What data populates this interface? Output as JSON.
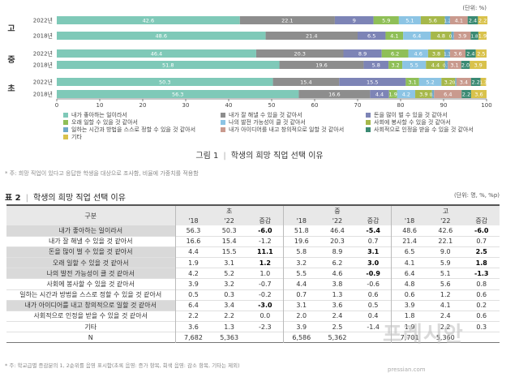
{
  "chart_data": {
    "type": "bar",
    "orientation": "horizontal",
    "stacked": true,
    "unit_label": "(단위: %)",
    "xlim": [
      0,
      100
    ],
    "xticks": [
      "0",
      "10",
      "20",
      "30",
      "40",
      "50",
      "60",
      "70",
      "80",
      "90",
      "100"
    ],
    "groups": [
      "고",
      "중",
      "초"
    ],
    "bars": [
      {
        "group": "고",
        "year": "2022년",
        "values": [
          42.6,
          22.1,
          9.0,
          5.9,
          5.1,
          5.6,
          1.2,
          4.1,
          2.4,
          2.2
        ]
      },
      {
        "group": "고",
        "year": "2018년",
        "values": [
          48.6,
          21.4,
          6.5,
          4.1,
          6.4,
          4.8,
          0.6,
          3.9,
          1.8,
          1.9
        ]
      },
      {
        "group": "중",
        "year": "2022년",
        "values": [
          46.4,
          20.3,
          8.9,
          6.2,
          4.6,
          3.8,
          1.3,
          3.6,
          2.4,
          2.5
        ]
      },
      {
        "group": "중",
        "year": "2018년",
        "values": [
          51.8,
          19.6,
          5.8,
          3.2,
          5.5,
          4.4,
          0.7,
          3.1,
          2.0,
          3.9
        ]
      },
      {
        "group": "초",
        "year": "2022년",
        "values": [
          50.3,
          15.4,
          15.5,
          3.1,
          5.2,
          3.2,
          0.3,
          3.4,
          2.2,
          1.3
        ]
      },
      {
        "group": "초",
        "year": "2018년",
        "values": [
          56.3,
          16.6,
          4.4,
          1.9,
          4.2,
          3.9,
          0.5,
          6.4,
          2.2,
          3.6
        ]
      }
    ],
    "segment_labels": [
      [
        "42.6",
        "22.1",
        "9",
        "5.9",
        "5.1",
        "5.6",
        "1.2",
        "4.1",
        "2.4",
        "2.2"
      ],
      [
        "48.6",
        "21.4",
        "6.5",
        "4.1",
        "6.4",
        "4.8",
        "0.6",
        "3.9",
        "1.8",
        "1.9"
      ],
      [
        "46.4",
        "20.3",
        "8.9",
        "6.2",
        "4.6",
        "3.8",
        "1.3",
        "3.6",
        "2.4",
        "2.5"
      ],
      [
        "51.8",
        "19.6",
        "5.8",
        "3.2",
        "5.5",
        "4.4",
        "0.7",
        "3.1",
        "2.0",
        "3.9"
      ],
      [
        "50.3",
        "15.4",
        "15.5",
        "3.1",
        "5.2",
        "3.2",
        "0.3",
        "3.4",
        "2.2",
        "1.3"
      ],
      [
        "56.3",
        "16.6",
        "4.4",
        "1.9",
        "4.2",
        "3.9",
        "0.5",
        "6.4",
        "2.2",
        "3.6"
      ]
    ],
    "series": [
      {
        "name": "내가 좋아하는 일이라서",
        "color": "#7fc9b8"
      },
      {
        "name": "내가 잘 해낼 수 있을 것 같아서",
        "color": "#8d8d8d"
      },
      {
        "name": "돈을 많이 벌 수 있을 것 같아서",
        "color": "#7d84b6"
      },
      {
        "name": "오래 일할 수 있을 것 같아서",
        "color": "#8fbf57"
      },
      {
        "name": "나의 발전 가능성이 클 것 같아서",
        "color": "#8cc4e4"
      },
      {
        "name": "사회에 봉사할 수 있을 것 같아서",
        "color": "#a6b84a"
      },
      {
        "name": "일하는 시간과 방법을 스스로 정할 수 있을 것 같아서",
        "color": "#6fa9c8"
      },
      {
        "name": "내가 아이디어를 내고 창의적으로 일할 것 같아서",
        "color": "#c99a8e"
      },
      {
        "name": "사회적으로 인정을 받을 수 있을 것 같아서",
        "color": "#3b8a73"
      },
      {
        "name": "기타",
        "color": "#d9c24c"
      }
    ]
  },
  "figure": {
    "num": "그림 1",
    "title": "학생의 희망 직업 선택 이유"
  },
  "note": "* 주: 희망 직업이 있다고 응답한 학생을 대상으로 조사함, 비율에 가중치를 적용함",
  "table": {
    "num": "표 2",
    "title": "학생의 희망 직업 선택 이유",
    "unit": "(단위: 명, %, %p)",
    "corner": "구분",
    "levels": [
      "초",
      "중",
      "고"
    ],
    "subheaders": [
      "'18",
      "'22",
      "증감",
      "'18",
      "'22",
      "증감",
      "'18",
      "'22",
      "증감"
    ],
    "rows": [
      {
        "label": "내가 좋아하는 일이라서",
        "hl": true,
        "cells": [
          "56.3",
          "50.3",
          "-6.0",
          "51.8",
          "46.4",
          "-5.4",
          "48.6",
          "42.6",
          "-6.0"
        ],
        "bold": [
          2,
          5,
          8
        ]
      },
      {
        "label": "내가 잘 해낼 수 있을 것 같아서",
        "hl": false,
        "cells": [
          "16.6",
          "15.4",
          "-1.2",
          "19.6",
          "20.3",
          "0.7",
          "21.4",
          "22.1",
          "0.7"
        ],
        "bold": []
      },
      {
        "label": "돈을 많이 벌 수 있을 것 같아서",
        "hl": true,
        "cells": [
          "4.4",
          "15.5",
          "11.1",
          "5.8",
          "8.9",
          "3.1",
          "6.5",
          "9.0",
          "2.5"
        ],
        "bold": [
          2,
          5,
          8
        ]
      },
      {
        "label": "오래 일할 수 있을 것 같아서",
        "hl": true,
        "cells": [
          "1.9",
          "3.1",
          "1.2",
          "3.2",
          "6.2",
          "3.0",
          "4.1",
          "5.9",
          "1.8"
        ],
        "bold": [
          2,
          5,
          8
        ]
      },
      {
        "label": "나의 발전 가능성이 클 것 같아서",
        "hl": true,
        "cells": [
          "4.2",
          "5.2",
          "1.0",
          "5.5",
          "4.6",
          "-0.9",
          "6.4",
          "5.1",
          "-1.3"
        ],
        "bold": [
          5,
          8
        ]
      },
      {
        "label": "사회에 봉사할 수 있을 것 같아서",
        "hl": false,
        "cells": [
          "3.9",
          "3.2",
          "-0.7",
          "4.4",
          "3.8",
          "-0.6",
          "4.8",
          "5.6",
          "0.8"
        ],
        "bold": []
      },
      {
        "label": "일하는 시간과 방법을 스스로 정할 수 있을 것 같아서",
        "hl": false,
        "cells": [
          "0.5",
          "0.3",
          "-0.2",
          "0.7",
          "1.3",
          "0.6",
          "0.6",
          "1.2",
          "0.6"
        ],
        "bold": []
      },
      {
        "label": "내가 아이디어를 내고 창의적으로 일할 것 같아서",
        "hl": true,
        "cells": [
          "6.4",
          "3.4",
          "-3.0",
          "3.1",
          "3.6",
          "0.5",
          "3.9",
          "4.1",
          "0.2"
        ],
        "bold": [
          2
        ]
      },
      {
        "label": "사회적으로 인정을 받을 수 있을 것 같아서",
        "hl": false,
        "cells": [
          "2.2",
          "2.2",
          "0.0",
          "2.0",
          "2.4",
          "0.4",
          "1.8",
          "2.4",
          "0.6"
        ],
        "bold": []
      },
      {
        "label": "기타",
        "hl": false,
        "cells": [
          "3.6",
          "1.3",
          "-2.3",
          "3.9",
          "2.5",
          "-1.4",
          "1.9",
          "2.2",
          "0.3"
        ],
        "bold": []
      },
      {
        "label": "N",
        "hl": false,
        "cells": [
          "7,682",
          "5,363",
          "",
          "6,586",
          "5,362",
          "",
          "7,701",
          "5,360",
          ""
        ],
        "bold": []
      }
    ]
  },
  "footnote": "* 주: 학교급별 증감분의 1, 2순위를 음영 표시함(초록 음영: 증가 항목, 회색 음영: 감소 항목, 기타는 제외)",
  "watermark": {
    "main": "프레시안",
    "sub": "pressian.com"
  }
}
